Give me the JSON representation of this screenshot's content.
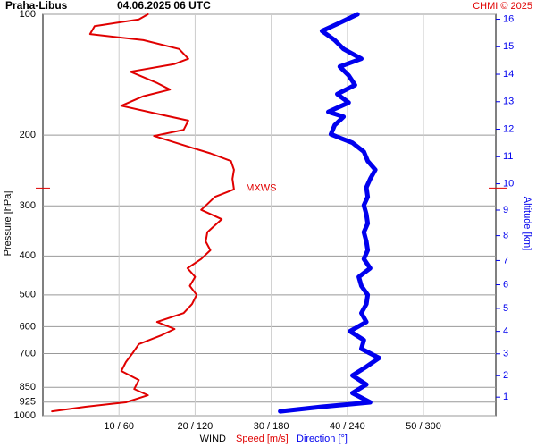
{
  "chart_data": {
    "type": "line",
    "title": "Praha-Libus",
    "subtitle": "04.06.2025 06 UTC",
    "credit": "CHMI © 2025",
    "ylabel": "Pressure [hPa]",
    "y2label": "Altitude [km]",
    "xlabel": "WIND",
    "yscale": "log",
    "y2scale": "standard-atmosphere",
    "ylim": [
      1000,
      100
    ],
    "yticks": [
      100,
      200,
      300,
      400,
      500,
      600,
      700,
      850,
      925,
      1000
    ],
    "y2ticks": [
      1,
      2,
      3,
      4,
      5,
      6,
      7,
      8,
      9,
      10,
      11,
      12,
      13,
      14,
      15,
      16
    ],
    "xlim": [
      0,
      59.5
    ],
    "x2lim": [
      0,
      357
    ],
    "xticks": [
      {
        "value": 10,
        "label": "10 / 60"
      },
      {
        "value": 20,
        "label": "20 / 120"
      },
      {
        "value": 30,
        "label": "30 / 180"
      },
      {
        "value": 40,
        "label": "40 / 240"
      },
      {
        "value": 50,
        "label": "50 / 300"
      }
    ],
    "grid": true,
    "annotation": {
      "text": "MXWS",
      "x": 25.5,
      "y": 271,
      "color": "#e00000"
    },
    "series": [
      {
        "name": "Speed [m/s]",
        "color": "#e00000",
        "axis": "x",
        "pressure": [
          975,
          950,
          926,
          889,
          858,
          815,
          774,
          735,
          698,
          663,
          630,
          608,
          584,
          555,
          527,
          500,
          475,
          451,
          429,
          407,
          387,
          368,
          349,
          324,
          307,
          297,
          285,
          273,
          257,
          244,
          232,
          222,
          215,
          201,
          194,
          184,
          178,
          169,
          160,
          154,
          148,
          139,
          133,
          129,
          122,
          116,
          112,
          107,
          103,
          100
        ],
        "values": [
          1.2,
          5.6,
          10.9,
          13.8,
          12,
          12.6,
          10.3,
          10.9,
          11.8,
          12.6,
          15.6,
          17.3,
          15,
          18.5,
          19.6,
          20.2,
          19.3,
          20,
          19,
          20.8,
          22,
          21.4,
          21.6,
          23.5,
          20.8,
          21.6,
          22.6,
          25.1,
          24.9,
          25.1,
          24.7,
          22,
          19.6,
          14.6,
          18.5,
          19.1,
          15.6,
          10.3,
          13.2,
          16.7,
          14.9,
          11.5,
          17.3,
          19.1,
          17.9,
          13.2,
          6.2,
          6.8,
          12.6,
          13.8
        ]
      },
      {
        "name": "Direction [°]",
        "color": "#0000ee",
        "axis": "x2",
        "pressure": [
          975,
          950,
          926,
          878,
          836,
          794,
          755,
          718,
          681,
          648,
          616,
          584,
          555,
          527,
          500,
          475,
          451,
          429,
          407,
          387,
          368,
          349,
          332,
          315,
          299,
          285,
          270,
          257,
          244,
          232,
          220,
          209,
          199,
          189,
          180,
          175,
          166,
          158,
          150,
          142,
          135,
          129,
          122,
          116,
          110,
          105,
          100
        ],
        "values": [
          187,
          220,
          258,
          244,
          255,
          244,
          255,
          265,
          251,
          253,
          242,
          255,
          251,
          255,
          256,
          251,
          249,
          258,
          253,
          256,
          255,
          253,
          256,
          255,
          253,
          256,
          255,
          258,
          262,
          256,
          253,
          244,
          227,
          230,
          237,
          225,
          241,
          232,
          246,
          241,
          234,
          251,
          237,
          230,
          220,
          234,
          248
        ]
      }
    ]
  }
}
